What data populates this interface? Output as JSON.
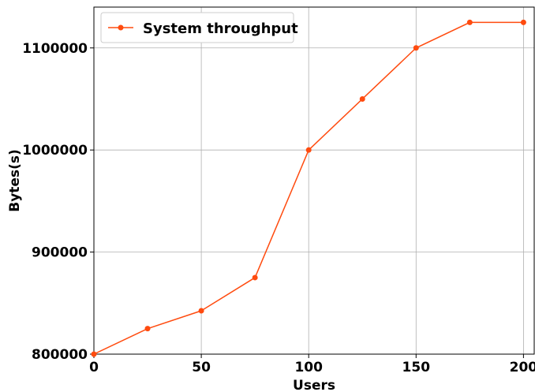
{
  "chart_data": {
    "type": "line",
    "title": "",
    "xlabel": "Users",
    "ylabel": "Bytes(s)",
    "xlim": [
      0,
      205
    ],
    "ylim": [
      800000,
      1140000
    ],
    "xticks": [
      0,
      50,
      100,
      150,
      200
    ],
    "yticks": [
      800000,
      900000,
      1000000,
      1100000
    ],
    "xtick_labels": [
      "0",
      "50",
      "100",
      "150",
      "200"
    ],
    "ytick_labels": [
      "800000",
      "900000",
      "1000000",
      "1100000"
    ],
    "grid": true,
    "legend_position": "top-left",
    "series": [
      {
        "name": "System throughput",
        "color": "#ff4b0f",
        "marker": "circle",
        "x": [
          0,
          25,
          50,
          75,
          100,
          125,
          150,
          175,
          200
        ],
        "y": [
          800000,
          825000,
          842500,
          875000,
          1000000,
          1050000,
          1100000,
          1125000,
          1125000
        ]
      }
    ]
  }
}
